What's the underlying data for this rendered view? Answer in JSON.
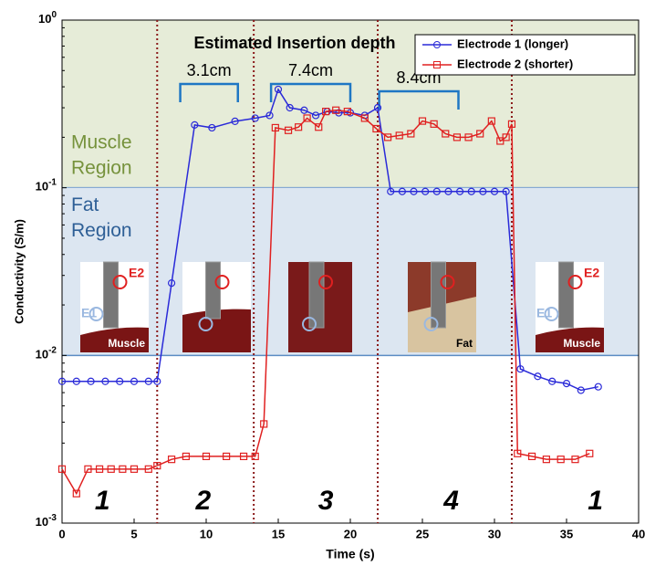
{
  "chart_data": {
    "type": "line",
    "title": "Estimated Insertion depth",
    "x_label": "Time (s)",
    "y_label": "Conductivity (S/m)",
    "y_scale": "log",
    "xlim": [
      0,
      40
    ],
    "ylim": [
      0.001,
      1
    ],
    "xticks": [
      0,
      5,
      10,
      15,
      20,
      25,
      30,
      35,
      40
    ],
    "yticks": [
      {
        "value": 1,
        "label": "10^0"
      },
      {
        "value": 0.1,
        "label": "10^-1"
      },
      {
        "value": 0.01,
        "label": "10^-2"
      },
      {
        "value": 0.001,
        "label": "10^-3"
      }
    ],
    "legend": "upper right",
    "regions": [
      {
        "name": "Muscle",
        "label": "Region",
        "range": [
          0.1,
          1
        ],
        "color": "#e6ecd8",
        "text_color": "#76923c"
      },
      {
        "name": "Fat",
        "label": "Region",
        "range": [
          0.01,
          0.1
        ],
        "color": "#dce6f1",
        "text_color": "#2e5f96"
      }
    ],
    "region_edge_color": "#5b8cc4",
    "transitions": [
      6.6,
      13.3,
      21.9,
      31.2
    ],
    "transition_color": "#8b1a1a",
    "depths": [
      {
        "label": "3.1cm",
        "range": [
          8.2,
          12.2
        ]
      },
      {
        "label": "7.4cm",
        "range": [
          14.5,
          20
        ]
      },
      {
        "label": "8.4cm",
        "range": [
          22,
          27.5
        ]
      }
    ],
    "depth_color": "#1f77c4",
    "phases": [
      "1",
      "2",
      "3",
      "4",
      "1"
    ],
    "insets": [
      {
        "labels": [
          "E2",
          "E1",
          "Muscle"
        ]
      },
      {
        "labels": []
      },
      {
        "labels": []
      },
      {
        "labels": [
          "Fat"
        ]
      },
      {
        "labels": [
          "E2",
          "E1",
          "Muscle"
        ]
      }
    ],
    "series": [
      {
        "name": "Electrode 1 (longer)",
        "color": "#2a2ad8",
        "marker": "circle",
        "x": [
          0,
          1,
          2,
          3,
          4,
          5,
          6,
          6.6,
          7.6,
          9.2,
          10.4,
          12,
          13.4,
          14.4,
          15,
          15.8,
          16.8,
          17.6,
          18.4,
          19.2,
          20,
          21,
          21.9,
          22.8,
          23.6,
          24.4,
          25.2,
          26,
          26.8,
          27.6,
          28.4,
          29.2,
          30,
          30.8,
          31.8,
          33,
          34,
          35,
          36,
          37.2
        ],
        "values": [
          0.007,
          0.007,
          0.007,
          0.007,
          0.007,
          0.007,
          0.007,
          0.007,
          0.027,
          0.237,
          0.228,
          0.249,
          0.26,
          0.27,
          0.386,
          0.3,
          0.29,
          0.27,
          0.285,
          0.28,
          0.28,
          0.27,
          0.3,
          0.095,
          0.095,
          0.095,
          0.095,
          0.095,
          0.095,
          0.095,
          0.095,
          0.095,
          0.095,
          0.095,
          0.0083,
          0.0075,
          0.007,
          0.0068,
          0.0062,
          0.0065
        ]
      },
      {
        "name": "Electrode 2 (shorter)",
        "color": "#e02020",
        "marker": "square",
        "x": [
          0,
          1,
          1.8,
          2.6,
          3.4,
          4.2,
          5,
          6,
          6.6,
          7.6,
          8.6,
          10,
          11.4,
          12.6,
          13.4,
          14,
          14.8,
          15.7,
          16.4,
          17,
          17.8,
          18.3,
          19,
          19.8,
          21,
          21.8,
          22.6,
          23.4,
          24.2,
          25,
          25.8,
          26.6,
          27.4,
          28.2,
          29,
          29.8,
          30.4,
          30.8,
          31.2,
          31.6,
          32.6,
          33.6,
          34.6,
          35.6,
          36.6
        ],
        "values": [
          0.0021,
          0.0015,
          0.0021,
          0.0021,
          0.0021,
          0.0021,
          0.0021,
          0.0021,
          0.0022,
          0.0024,
          0.0025,
          0.0025,
          0.0025,
          0.0025,
          0.0025,
          0.0039,
          0.228,
          0.22,
          0.23,
          0.26,
          0.23,
          0.285,
          0.29,
          0.285,
          0.26,
          0.225,
          0.2,
          0.205,
          0.21,
          0.25,
          0.24,
          0.21,
          0.2,
          0.2,
          0.21,
          0.25,
          0.19,
          0.2,
          0.24,
          0.0026,
          0.0025,
          0.0024,
          0.0024,
          0.0024,
          0.0026
        ]
      }
    ]
  }
}
